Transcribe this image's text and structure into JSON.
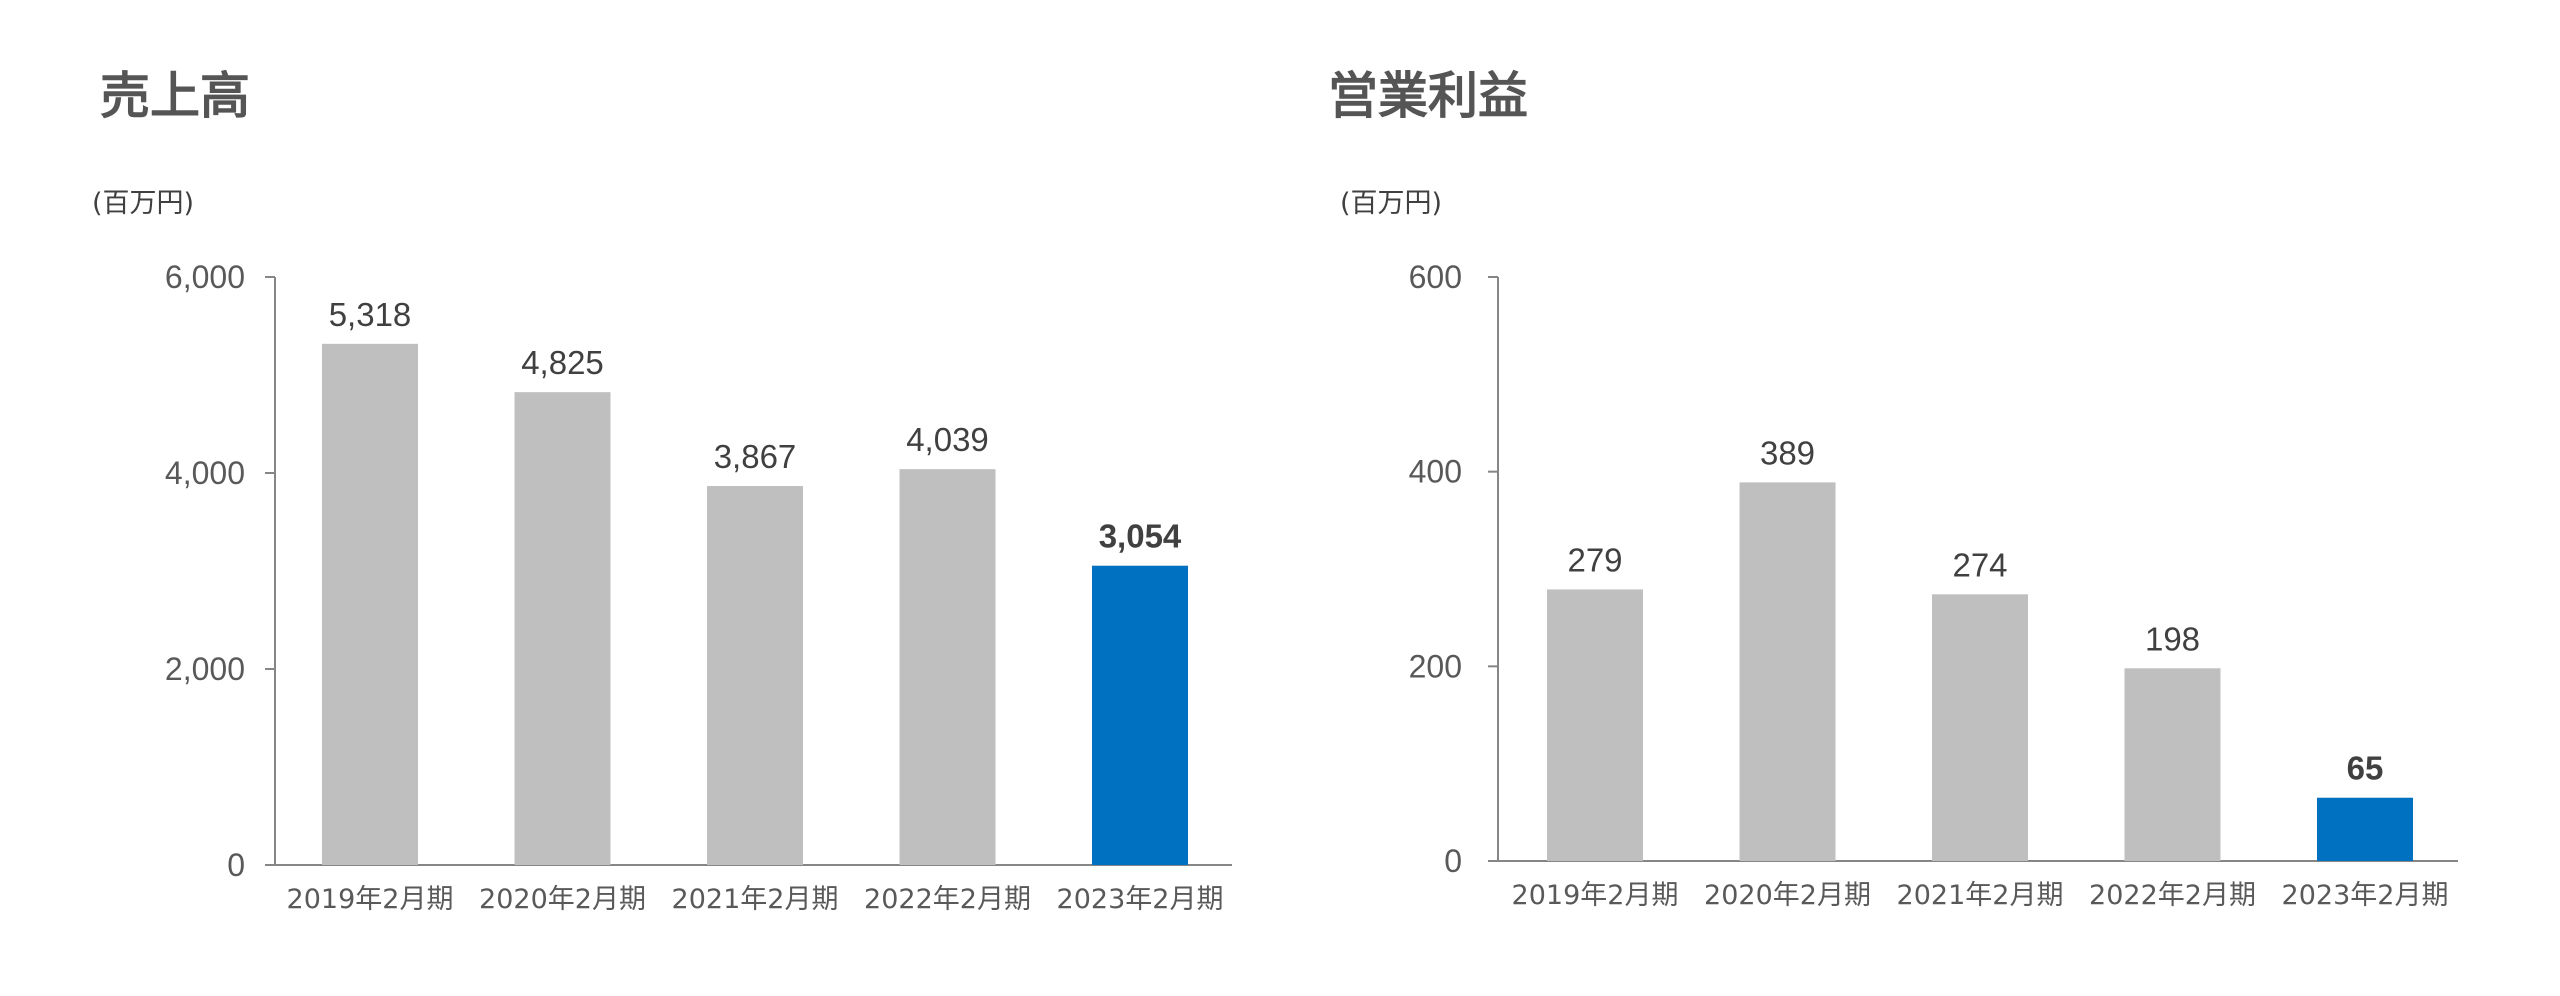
{
  "chart_data": [
    {
      "type": "bar",
      "title": "売上高",
      "ylabel": "(百万円)",
      "categories": [
        "2019年2月期",
        "2020年2月期",
        "2021年2月期",
        "2022年2月期",
        "2023年2月期"
      ],
      "values": [
        5318,
        4825,
        3867,
        4039,
        3054
      ],
      "value_labels": [
        "5,318",
        "4,825",
        "3,867",
        "4,039",
        "3,054"
      ],
      "ylim": [
        0,
        6000
      ],
      "yticks": [
        0,
        2000,
        4000,
        6000
      ],
      "ytick_labels": [
        "0",
        "2,000",
        "4,000",
        "6,000"
      ],
      "highlight_index": 4,
      "bar_color": "#bfbfbf",
      "highlight_color": "#0070c0",
      "grid": false
    },
    {
      "type": "bar",
      "title": "営業利益",
      "ylabel": "(百万円)",
      "categories": [
        "2019年2月期",
        "2020年2月期",
        "2021年2月期",
        "2022年2月期",
        "2023年2月期"
      ],
      "values": [
        279,
        389,
        274,
        198,
        65
      ],
      "value_labels": [
        "279",
        "389",
        "274",
        "198",
        "65"
      ],
      "ylim": [
        0,
        600
      ],
      "yticks": [
        0,
        200,
        400,
        600
      ],
      "ytick_labels": [
        "0",
        "200",
        "400",
        "600"
      ],
      "highlight_index": 4,
      "bar_color": "#bfbfbf",
      "highlight_color": "#0070c0",
      "grid": false
    }
  ]
}
